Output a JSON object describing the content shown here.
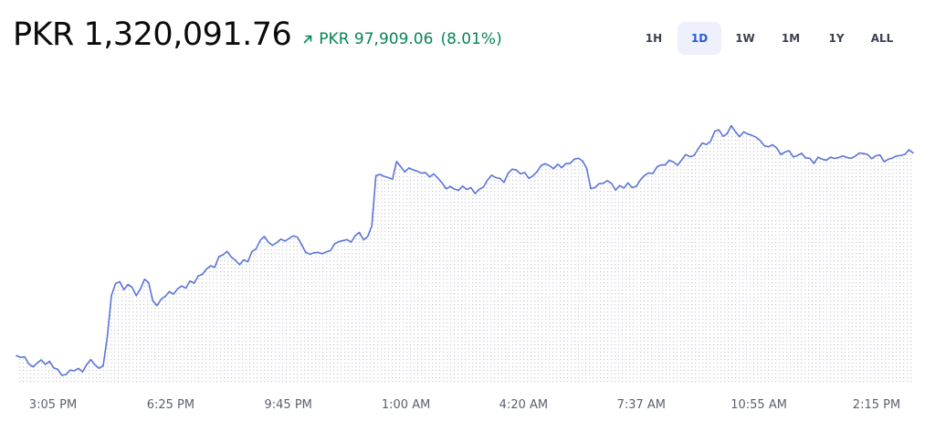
{
  "header": {
    "price": "PKR 1,320,091.76",
    "change_amount": "PKR 97,909.06",
    "change_percent": "(8.01%)",
    "change_direction_icon": "arrow-up-right-icon",
    "change_color": "#098551"
  },
  "time_ranges": {
    "items": [
      {
        "label": "1H"
      },
      {
        "label": "1D"
      },
      {
        "label": "1W"
      },
      {
        "label": "1M"
      },
      {
        "label": "1Y"
      },
      {
        "label": "ALL"
      }
    ],
    "selected": "1D"
  },
  "colors": {
    "line": "#5b73d8",
    "fill_dots": "#c5cad6",
    "accent": "#2b5ad8"
  },
  "chart_data": {
    "type": "area",
    "x_tick_labels": [
      "3:05 PM",
      "6:25 PM",
      "9:45 PM",
      "1:00 AM",
      "4:20 AM",
      "7:37 AM",
      "10:55 AM",
      "2:15 PM"
    ],
    "ylim": [
      1216000,
      1329000
    ],
    "grid": false,
    "legend": "none",
    "values": [
      1226500,
      1225800,
      1226000,
      1223200,
      1222000,
      1223500,
      1224800,
      1223000,
      1224200,
      1221600,
      1221000,
      1218600,
      1218900,
      1220700,
      1220400,
      1221400,
      1220000,
      1222900,
      1224900,
      1222800,
      1221400,
      1222500,
      1234200,
      1250700,
      1255500,
      1256200,
      1253000,
      1255100,
      1253900,
      1250600,
      1253300,
      1257200,
      1255800,
      1248600,
      1246600,
      1249100,
      1250300,
      1252200,
      1251200,
      1253300,
      1254500,
      1253600,
      1256500,
      1255600,
      1258500,
      1259200,
      1261300,
      1262600,
      1262000,
      1266300,
      1267000,
      1268400,
      1266100,
      1264800,
      1263000,
      1265000,
      1264200,
      1268300,
      1269400,
      1272800,
      1274400,
      1272000,
      1270800,
      1271900,
      1273300,
      1272500,
      1273600,
      1274600,
      1274100,
      1271200,
      1268000,
      1267200,
      1267800,
      1268000,
      1267400,
      1268200,
      1268700,
      1271400,
      1272300,
      1272700,
      1273100,
      1272100,
      1274700,
      1276000,
      1273000,
      1274300,
      1278600,
      1298800,
      1299300,
      1298500,
      1298000,
      1297400,
      1304500,
      1302400,
      1300300,
      1301900,
      1301100,
      1300600,
      1299800,
      1300000,
      1298300,
      1299500,
      1297800,
      1295900,
      1293500,
      1294500,
      1293400,
      1292900,
      1294600,
      1293200,
      1294000,
      1291600,
      1293300,
      1294200,
      1297000,
      1299000,
      1298000,
      1297700,
      1296100,
      1299800,
      1301400,
      1301100,
      1299500,
      1300100,
      1297700,
      1298700,
      1300400,
      1302900,
      1303600,
      1302800,
      1301600,
      1303400,
      1302000,
      1303700,
      1303700,
      1305400,
      1305800,
      1304700,
      1301800,
      1293600,
      1294000,
      1295600,
      1295700,
      1296800,
      1295700,
      1293000,
      1294800,
      1293800,
      1295900,
      1294000,
      1294500,
      1297100,
      1298900,
      1299900,
      1299600,
      1302300,
      1303100,
      1303100,
      1305000,
      1304300,
      1303000,
      1305100,
      1307300,
      1306400,
      1306900,
      1309600,
      1311900,
      1311300,
      1312600,
      1316600,
      1317200,
      1314600,
      1315600,
      1318900,
      1316500,
      1314400,
      1316400,
      1315500,
      1315000,
      1314200,
      1312900,
      1310800,
      1310400,
      1311200,
      1309900,
      1307300,
      1308300,
      1308800,
      1306300,
      1306900,
      1307800,
      1305900,
      1305800,
      1303700,
      1306200,
      1305400,
      1305000,
      1306200,
      1305700,
      1306100,
      1306700,
      1306100,
      1305800,
      1306600,
      1307900,
      1307700,
      1307300,
      1305600,
      1306800,
      1307100,
      1304400,
      1305400,
      1305900,
      1306700,
      1306900,
      1307300,
      1309200,
      1307900
    ]
  }
}
